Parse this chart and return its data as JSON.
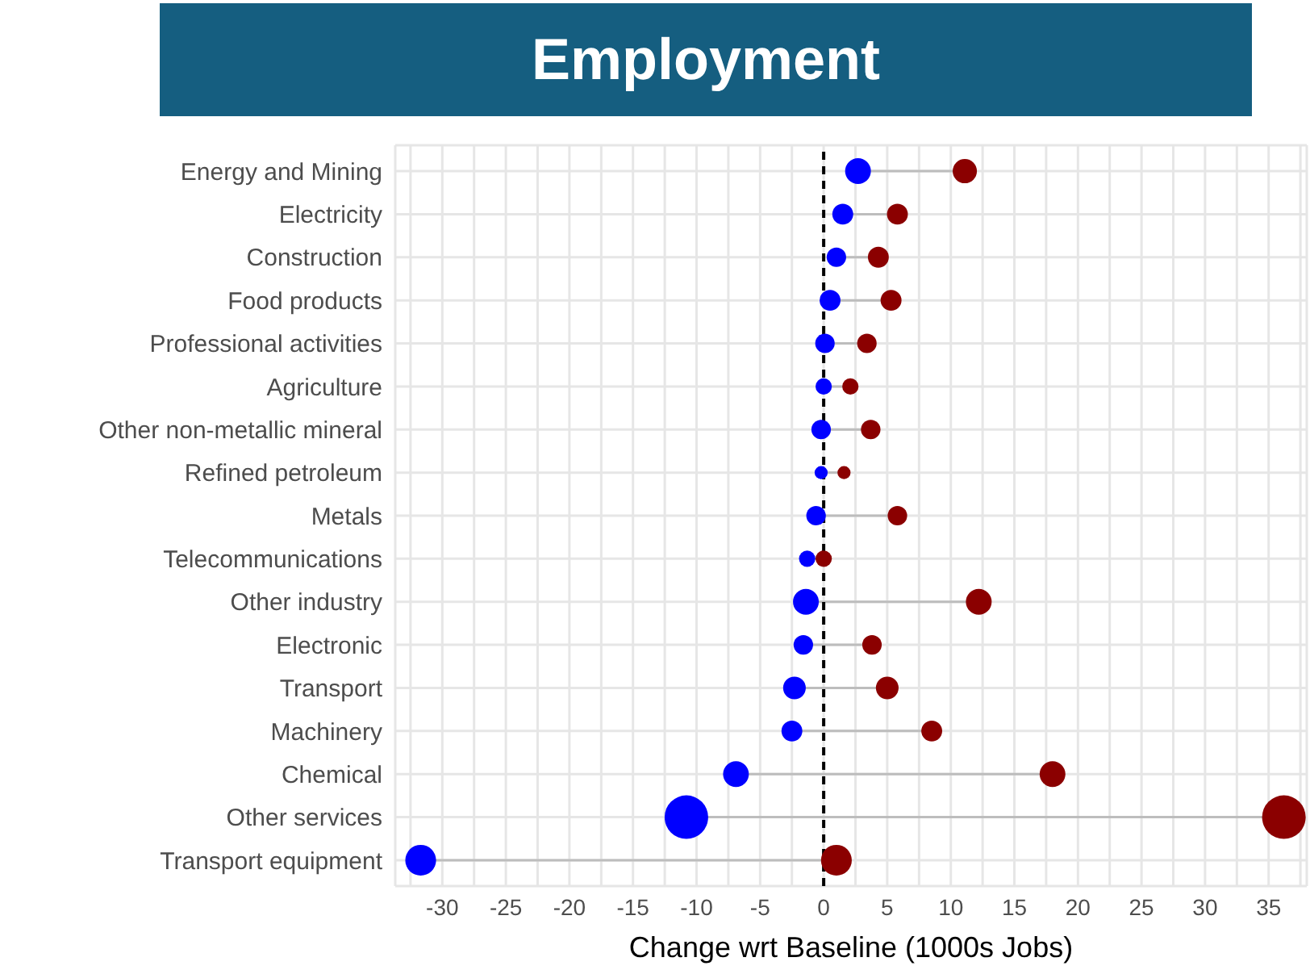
{
  "chart_data": {
    "type": "bubble",
    "title": "Employment",
    "xlabel": "Change wrt Baseline (1000s Jobs)",
    "orientation": "horizontal",
    "categories": [
      "Energy and Mining",
      "Electricity",
      "Construction",
      "Food products",
      "Professional activities",
      "Agriculture",
      "Other non-metallic mineral",
      "Refined petroleum",
      "Metals",
      "Telecommunications",
      "Other industry",
      "Electronic",
      "Transport",
      "Machinery",
      "Chemical",
      "Other services",
      "Transport equipment"
    ],
    "series": [
      {
        "color": "#0000ff",
        "values": [
          2.7,
          1.5,
          1.0,
          0.5,
          0.1,
          0,
          -0.2,
          -0.2,
          -0.6,
          -1.3,
          -1.4,
          -1.6,
          -2.3,
          -2.5,
          -6.9,
          -10.8,
          -31.7
        ],
        "sizes": [
          0.35,
          0.23,
          0.2,
          0.23,
          0.2,
          0.14,
          0.2,
          0.09,
          0.2,
          0.14,
          0.35,
          0.2,
          0.27,
          0.23,
          0.35,
          1,
          0.5
        ]
      },
      {
        "color": "#8b0000",
        "values": [
          11.1,
          5.8,
          4.3,
          5.3,
          3.4,
          2.1,
          3.7,
          1.6,
          5.8,
          0,
          12.2,
          3.8,
          5.0,
          8.5,
          18.0,
          36.2,
          1.0
        ],
        "sizes": [
          0.31,
          0.23,
          0.23,
          0.23,
          0.2,
          0.14,
          0.2,
          0.09,
          0.2,
          0.14,
          0.35,
          0.2,
          0.27,
          0.23,
          0.35,
          1,
          0.5
        ]
      }
    ],
    "xlim": [
      -33.7,
      38
    ],
    "xticks": [
      {
        "value": -32.5,
        "label": null
      },
      -30,
      {
        "value": -27.5,
        "label": null
      },
      -25,
      {
        "value": -22.5,
        "label": null
      },
      -20,
      {
        "value": -17.5,
        "label": null
      },
      -15,
      {
        "value": -12.5,
        "label": null
      },
      -10,
      {
        "value": -7.5,
        "label": null
      },
      -5,
      {
        "value": -2.5,
        "label": null
      },
      0,
      {
        "value": 2.5,
        "label": null
      },
      5,
      {
        "value": 7.5,
        "label": null
      },
      10,
      {
        "value": 12.5,
        "label": null
      },
      15,
      {
        "value": 17.5,
        "label": null
      },
      20,
      {
        "value": 22.5,
        "label": null
      },
      25,
      {
        "value": 27.5,
        "label": null
      },
      30,
      {
        "value": 32.5,
        "label": null
      },
      35,
      {
        "value": 37.5,
        "label": null
      }
    ],
    "grid": true,
    "ref_lines": [
      {
        "axis": "x",
        "value": 0,
        "color": "#000000",
        "line_style": "dashed"
      }
    ]
  }
}
